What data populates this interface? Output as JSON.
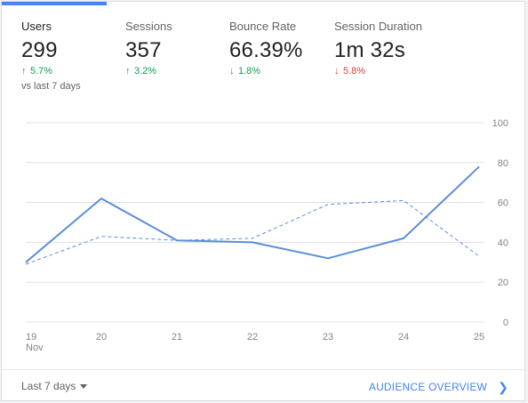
{
  "metrics": [
    {
      "name": "Users",
      "value": "299",
      "delta": "5.7%",
      "direction": "up",
      "compare": "vs last 7 days",
      "active": true
    },
    {
      "name": "Sessions",
      "value": "357",
      "delta": "3.2%",
      "direction": "up"
    },
    {
      "name": "Bounce Rate",
      "value": "66.39%",
      "delta": "1.8%",
      "direction": "down",
      "sentiment": "good"
    },
    {
      "name": "Session Duration",
      "value": "1m 32s",
      "delta": "5.8%",
      "direction": "down",
      "sentiment": "bad"
    }
  ],
  "footer": {
    "range": "Last 7 days",
    "link": "AUDIENCE OVERVIEW"
  },
  "colors": {
    "accent": "#4285f4",
    "line": "#5b8fd9",
    "positive": "#0f9d58",
    "negative": "#db4437"
  },
  "chart_data": {
    "type": "line",
    "categories": [
      "19",
      "20",
      "21",
      "22",
      "23",
      "24",
      "25"
    ],
    "category_sublabel": "Nov",
    "y_ticks": [
      "0",
      "20",
      "40",
      "60",
      "80",
      "100"
    ],
    "ylim": [
      0,
      100
    ],
    "grid": true,
    "series": [
      {
        "style": "solid",
        "values": [
          30,
          62,
          41,
          40,
          32,
          42,
          78
        ]
      },
      {
        "style": "dashed",
        "values": [
          29,
          43,
          41,
          42,
          59,
          61,
          33
        ]
      }
    ]
  }
}
